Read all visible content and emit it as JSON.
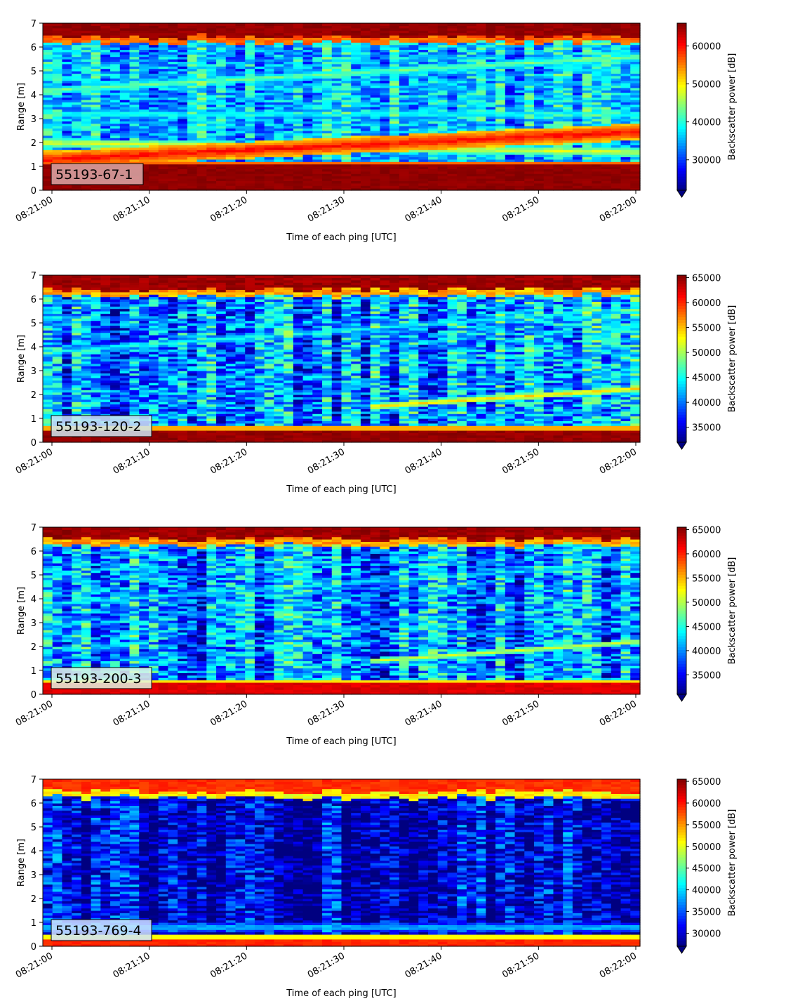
{
  "chart_data": [
    {
      "type": "heatmap",
      "label": "55193-67-1",
      "label_box_color": "#dba9a9",
      "xlabel": "Time of each ping [UTC]",
      "ylabel": "Range [m]",
      "colorbar_label": "Backscatter power [dB]",
      "colormap": "jet",
      "x_tick_labels": [
        "08:21:00",
        "08:21:10",
        "08:21:20",
        "08:21:30",
        "08:21:40",
        "08:21:50",
        "08:22:00"
      ],
      "y_ticks": [
        0,
        1,
        2,
        3,
        4,
        5,
        6,
        7
      ],
      "ylim": [
        0,
        7
      ],
      "clim": [
        22000,
        66000
      ],
      "colorbar_ticks": [
        30000,
        40000,
        50000,
        60000
      ],
      "features": [
        {
          "kind": "surface_band",
          "bottom": 6.45,
          "value": 66000
        },
        {
          "kind": "near_band",
          "top": 1.05,
          "value": 66000
        },
        {
          "kind": "rising_layer",
          "start_m": 1.3,
          "end_m": 2.45,
          "value": 62000
        },
        {
          "kind": "layer",
          "start_m": 2.0,
          "end_m": 1.6,
          "value": 50000
        },
        {
          "kind": "layer",
          "start_m": 3.2,
          "end_m": 3.2,
          "value": 42000
        },
        {
          "kind": "layer",
          "start_m": 4.2,
          "end_m": 5.6,
          "value": 45000
        }
      ],
      "background_level": 36000
    },
    {
      "type": "heatmap",
      "label": "55193-120-2",
      "label_box_color": "#cfe8f2",
      "xlabel": "Time of each ping [UTC]",
      "ylabel": "Range [m]",
      "colorbar_label": "Backscatter power [dB]",
      "colormap": "jet",
      "x_tick_labels": [
        "08:21:00",
        "08:21:10",
        "08:21:20",
        "08:21:30",
        "08:21:40",
        "08:21:50",
        "08:22:00"
      ],
      "y_ticks": [
        0,
        1,
        2,
        3,
        4,
        5,
        6,
        7
      ],
      "ylim": [
        0,
        7
      ],
      "clim": [
        32000,
        65500
      ],
      "colorbar_ticks": [
        35000,
        40000,
        45000,
        50000,
        55000,
        60000,
        65000
      ],
      "features": [
        {
          "kind": "surface_band",
          "bottom": 6.4,
          "value": 65500
        },
        {
          "kind": "near_band",
          "top": 0.5,
          "value": 65500
        },
        {
          "kind": "rising_layer_late",
          "start_m": 1.5,
          "end_m": 2.25,
          "value": 55000
        },
        {
          "kind": "layer",
          "start_m": 3.8,
          "end_m": 5.6,
          "value": 47000
        }
      ],
      "background_level": 41000
    },
    {
      "type": "heatmap",
      "label": "55193-200-3",
      "label_box_color": "#e3f6e3",
      "xlabel": "Time of each ping [UTC]",
      "ylabel": "Range [m]",
      "colorbar_label": "Backscatter power [dB]",
      "colormap": "jet",
      "x_tick_labels": [
        "08:21:00",
        "08:21:10",
        "08:21:20",
        "08:21:30",
        "08:21:40",
        "08:21:50",
        "08:22:00"
      ],
      "y_ticks": [
        0,
        1,
        2,
        3,
        4,
        5,
        6,
        7
      ],
      "ylim": [
        0,
        7
      ],
      "clim": [
        31000,
        65500
      ],
      "colorbar_ticks": [
        35000,
        40000,
        45000,
        50000,
        55000,
        60000,
        65000
      ],
      "features": [
        {
          "kind": "surface_band",
          "bottom": 6.5,
          "value": 65500
        },
        {
          "kind": "near_band",
          "top": 0.45,
          "value": 63000
        },
        {
          "kind": "rising_layer_late",
          "start_m": 1.4,
          "end_m": 2.2,
          "value": 52000
        },
        {
          "kind": "layer",
          "start_m": 3.8,
          "end_m": 5.5,
          "value": 45000
        }
      ],
      "background_level": 40000
    },
    {
      "type": "heatmap",
      "label": "55193-769-4",
      "label_box_color": "#cfe3ff",
      "xlabel": "Time of each ping [UTC]",
      "ylabel": "Range [m]",
      "colorbar_label": "Backscatter power [dB]",
      "colormap": "jet",
      "x_tick_labels": [
        "08:21:00",
        "08:21:10",
        "08:21:20",
        "08:21:30",
        "08:21:40",
        "08:21:50",
        "08:22:00"
      ],
      "y_ticks": [
        0,
        1,
        2,
        3,
        4,
        5,
        6,
        7
      ],
      "ylim": [
        0,
        7
      ],
      "clim": [
        27000,
        65500
      ],
      "colorbar_ticks": [
        30000,
        35000,
        40000,
        45000,
        50000,
        55000,
        60000,
        65000
      ],
      "features": [
        {
          "kind": "surface_band",
          "bottom": 6.5,
          "value": 60000
        },
        {
          "kind": "near_band",
          "top": 0.35,
          "value": 60000
        },
        {
          "kind": "layer",
          "start_m": 0.8,
          "end_m": 0.8,
          "value": 42000
        }
      ],
      "background_level": 30000
    }
  ]
}
